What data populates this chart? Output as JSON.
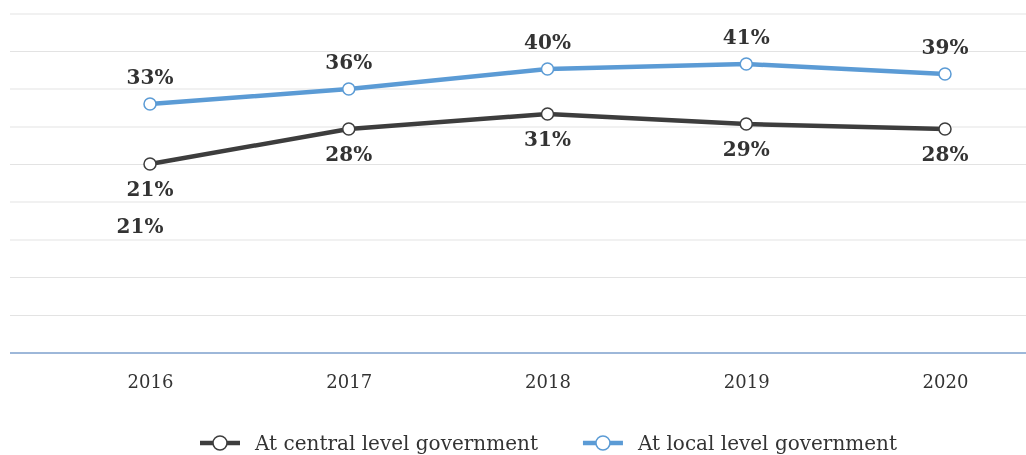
{
  "chart_data": {
    "type": "line",
    "categories": [
      "2016",
      "2017",
      "2018",
      "2019",
      "2020"
    ],
    "series": [
      {
        "name": "At central level government",
        "color": "#3d3d3d",
        "values": [
          21,
          28,
          31,
          29,
          28
        ],
        "value_labels": [
          "21%",
          "28%",
          "31%",
          "29%",
          "28%"
        ]
      },
      {
        "name": "At local level government",
        "color": "#5b9bd5",
        "values": [
          33,
          36,
          40,
          41,
          39
        ],
        "value_labels": [
          "33%",
          "36%",
          "40%",
          "41%",
          "39%"
        ]
      }
    ],
    "ylim": [
      -16.8,
      51
    ],
    "yticks": [
      {
        "value": -16.8,
        "label": null
      },
      {
        "value": -9.3,
        "label": null
      },
      {
        "value": -1.7,
        "label": null
      },
      {
        "value": 5.8,
        "label": null
      },
      {
        "value": 13.4,
        "label": null
      },
      {
        "value": 20.9,
        "label": null
      },
      {
        "value": 28.4,
        "label": null
      },
      {
        "value": 36,
        "label": null
      },
      {
        "value": 43.5,
        "label": null
      },
      {
        "value": 51,
        "label": null
      }
    ],
    "grid": "y",
    "marker": "circle",
    "line_style": "solid",
    "legend": "bottom",
    "tick_labels": "x",
    "annotations": [
      "21%"
    ]
  }
}
